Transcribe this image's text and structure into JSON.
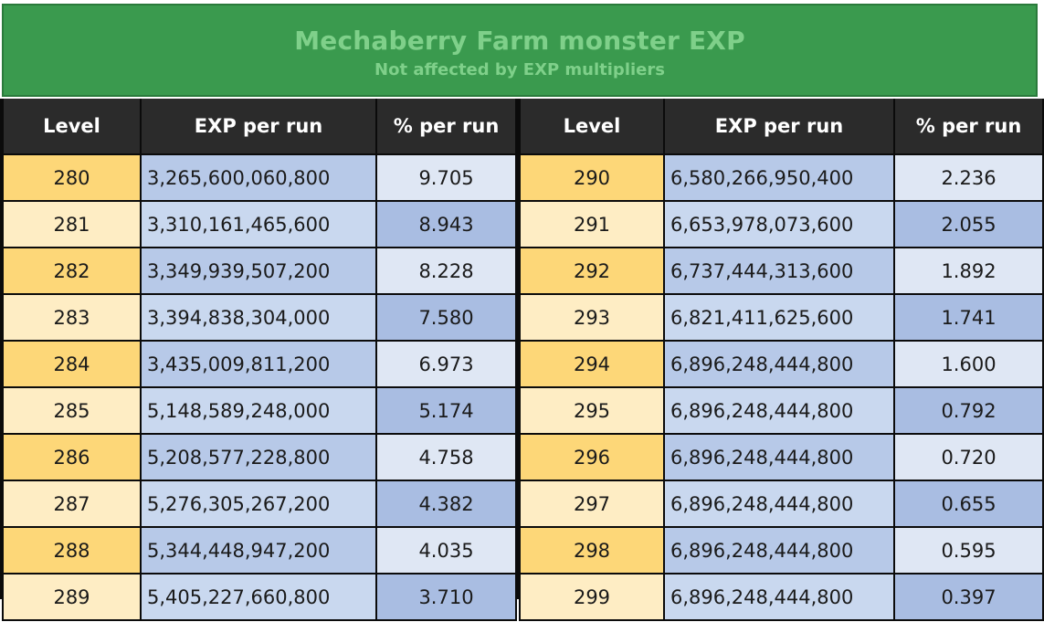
{
  "banner": {
    "title": "Mechaberry Farm monster EXP",
    "subtitle": "Not affected by EXP multipliers"
  },
  "columns": {
    "level": "Level",
    "exp": "EXP per run",
    "pct": "% per run"
  },
  "left_table": [
    {
      "level": "280",
      "exp": "3,265,600,060,800",
      "pct": "9.705"
    },
    {
      "level": "281",
      "exp": "3,310,161,465,600",
      "pct": "8.943"
    },
    {
      "level": "282",
      "exp": "3,349,939,507,200",
      "pct": "8.228"
    },
    {
      "level": "283",
      "exp": "3,394,838,304,000",
      "pct": "7.580"
    },
    {
      "level": "284",
      "exp": "3,435,009,811,200",
      "pct": "6.973"
    },
    {
      "level": "285",
      "exp": "5,148,589,248,000",
      "pct": "5.174"
    },
    {
      "level": "286",
      "exp": "5,208,577,228,800",
      "pct": "4.758"
    },
    {
      "level": "287",
      "exp": "5,276,305,267,200",
      "pct": "4.382"
    },
    {
      "level": "288",
      "exp": "5,344,448,947,200",
      "pct": "4.035"
    },
    {
      "level": "289",
      "exp": "5,405,227,660,800",
      "pct": "3.710"
    }
  ],
  "right_table": [
    {
      "level": "290",
      "exp": "6,580,266,950,400",
      "pct": "2.236"
    },
    {
      "level": "291",
      "exp": "6,653,978,073,600",
      "pct": "2.055"
    },
    {
      "level": "292",
      "exp": "6,737,444,313,600",
      "pct": "1.892"
    },
    {
      "level": "293",
      "exp": "6,821,411,625,600",
      "pct": "1.741"
    },
    {
      "level": "294",
      "exp": "6,896,248,444,800",
      "pct": "1.600"
    },
    {
      "level": "295",
      "exp": "6,896,248,444,800",
      "pct": "0.792"
    },
    {
      "level": "296",
      "exp": "6,896,248,444,800",
      "pct": "0.720"
    },
    {
      "level": "297",
      "exp": "6,896,248,444,800",
      "pct": "0.655"
    },
    {
      "level": "298",
      "exp": "6,896,248,444,800",
      "pct": "0.595"
    },
    {
      "level": "299",
      "exp": "6,896,248,444,800",
      "pct": "0.397"
    }
  ]
}
